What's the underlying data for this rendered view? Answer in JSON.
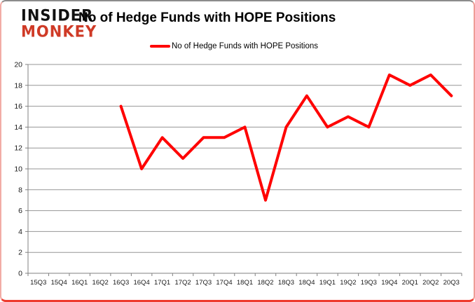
{
  "logo": {
    "line1": "INSIDER",
    "line2": "MONKEY",
    "line1_color": "#111111",
    "line2_color": "#cf3a26"
  },
  "header": {
    "title": "No of Hedge Funds with HOPE Positions"
  },
  "legend": {
    "label": "No of Hedge Funds with HOPE Positions",
    "color": "#ff0000"
  },
  "colors": {
    "series": "#ff0000",
    "gridline": "#969696",
    "axis": "#808080",
    "tick_text": "#1a1a1a",
    "background": "#ffffff"
  },
  "chart_data": {
    "type": "line",
    "title": "No of Hedge Funds with HOPE Positions",
    "xlabel": "",
    "ylabel": "",
    "categories": [
      "15Q3",
      "15Q4",
      "16Q1",
      "16Q2",
      "16Q3",
      "16Q4",
      "17Q1",
      "17Q2",
      "17Q3",
      "17Q4",
      "18Q1",
      "18Q2",
      "18Q3",
      "18Q4",
      "19Q1",
      "19Q2",
      "19Q3",
      "19Q4",
      "20Q1",
      "20Q2",
      "20Q3"
    ],
    "series": [
      {
        "name": "No of Hedge Funds with HOPE Positions",
        "color": "#ff0000",
        "values": [
          null,
          null,
          null,
          null,
          16,
          10,
          13,
          11,
          13,
          13,
          14,
          7,
          14,
          17,
          14,
          15,
          14,
          19,
          18,
          19,
          17
        ]
      }
    ],
    "ylim": [
      0,
      20
    ],
    "ytick_step": 2,
    "grid": true,
    "legend_position": "top-center"
  }
}
